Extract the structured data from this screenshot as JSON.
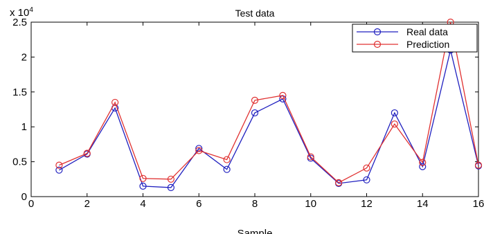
{
  "chart_data": {
    "type": "line",
    "title": "Test data",
    "xlabel": "Sample",
    "ylabel": "",
    "y_exponent_label": "x 10",
    "y_exponent": "4",
    "xlim": [
      0,
      16
    ],
    "ylim": [
      0,
      25000
    ],
    "x_ticks": [
      0,
      2,
      4,
      6,
      8,
      10,
      12,
      14,
      16
    ],
    "x_tick_labels": [
      "0",
      "2",
      "4",
      "6",
      "8",
      "10",
      "12",
      "14",
      "16"
    ],
    "y_ticks": [
      0,
      5000,
      10000,
      15000,
      20000,
      25000
    ],
    "y_tick_labels": [
      "0",
      "0.5",
      "1",
      "1.5",
      "2",
      "2.5"
    ],
    "grid": false,
    "legend_position": "top-right",
    "x": [
      1,
      2,
      3,
      4,
      5,
      6,
      7,
      8,
      9,
      10,
      11,
      12,
      13,
      14,
      15,
      16
    ],
    "series": [
      {
        "name": "Real data",
        "color": "#1f1fbf",
        "values": [
          3800,
          6100,
          12700,
          1500,
          1300,
          6900,
          3900,
          12000,
          14000,
          5500,
          1900,
          2400,
          12000,
          4300,
          21000,
          4400
        ]
      },
      {
        "name": "Prediction",
        "color": "#e03030",
        "values": [
          4500,
          6200,
          13500,
          2600,
          2500,
          6600,
          5300,
          13800,
          14500,
          5700,
          2000,
          4100,
          10400,
          4900,
          25000,
          4500
        ]
      }
    ]
  }
}
